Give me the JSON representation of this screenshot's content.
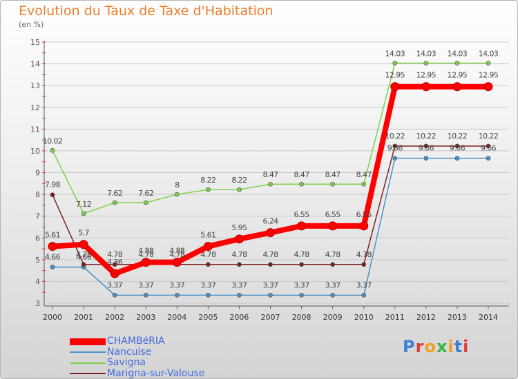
{
  "header": {
    "title": "Evolution du Taux de Taxe d'Habitation",
    "subtitle": "(en %)"
  },
  "logo": {
    "letters": [
      "P",
      "r",
      "o",
      "x",
      "i",
      "t",
      "i"
    ],
    "colors": [
      "#3a7fd5",
      "#e03a3a",
      "#f0a020",
      "#3ab54a",
      "#f0a020",
      "#3a7fd5",
      "#e03a3a"
    ]
  },
  "chart_data": {
    "type": "line",
    "title": "Evolution du Taux de Taxe d'Habitation",
    "ylabel": "(en %)",
    "xlabel": "",
    "ylim": [
      3,
      15
    ],
    "yticks": [
      "3",
      "4",
      "5",
      "6",
      "7",
      "8",
      "9",
      "10",
      "11",
      "12",
      "13",
      "14",
      "15"
    ],
    "grid": true,
    "legend_position": "bottom-left",
    "categories": [
      "2000",
      "2001",
      "2002",
      "2003",
      "2004",
      "2005",
      "2006",
      "2007",
      "2008",
      "2009",
      "2010",
      "2011",
      "2012",
      "2013",
      "2014"
    ],
    "series": [
      {
        "name": "CHAMBéRIA",
        "color": "#ff0000",
        "values": [
          5.61,
          5.7,
          4.36,
          4.88,
          4.88,
          5.61,
          5.95,
          6.24,
          6.55,
          6.55,
          6.55,
          12.95,
          12.95,
          12.95,
          12.95
        ],
        "labels": [
          "5.61",
          "5.7",
          "4.36",
          "4.88",
          "4.88",
          "5.61",
          "5.95",
          "6.24",
          "6.55",
          "6.55",
          "6.55",
          "12.95",
          "12.95",
          "12.95",
          "12.95"
        ]
      },
      {
        "name": "Nancuise",
        "color": "#4a90c8",
        "values": [
          4.66,
          4.66,
          3.37,
          3.37,
          3.37,
          3.37,
          3.37,
          3.37,
          3.37,
          3.37,
          3.37,
          9.66,
          9.66,
          9.66,
          9.66
        ],
        "labels": [
          "4.66",
          "4.66",
          "3.37",
          "3.37",
          "3.37",
          "3.37",
          "3.37",
          "3.37",
          "3.37",
          "3.37",
          "3.37",
          "9.66",
          "9.66",
          "9.66",
          "9.66"
        ]
      },
      {
        "name": "Savigna",
        "color": "#7ed04a",
        "values": [
          10.02,
          7.12,
          7.62,
          7.62,
          8,
          8.22,
          8.22,
          8.47,
          8.47,
          8.47,
          8.47,
          14.03,
          14.03,
          14.03,
          14.03
        ],
        "labels": [
          "10.02",
          "7.12",
          "7.62",
          "7.62",
          "8",
          "8.22",
          "8.22",
          "8.47",
          "8.47",
          "8.47",
          "8.47",
          "14.03",
          "14.03",
          "14.03",
          "14.03"
        ]
      },
      {
        "name": "Marigna-sur-Valouse",
        "color": "#7a2020",
        "values": [
          7.98,
          4.78,
          4.78,
          4.78,
          4.78,
          4.78,
          4.78,
          4.78,
          4.78,
          4.78,
          4.78,
          10.22,
          10.22,
          10.22,
          10.22
        ],
        "labels": [
          "7.98",
          "4.78",
          "4.78",
          "4.78",
          "4.78",
          "4.78",
          "4.78",
          "4.78",
          "4.78",
          "4.78",
          "4.78",
          "10.22",
          "10.22",
          "10.22",
          "10.22"
        ]
      }
    ]
  }
}
